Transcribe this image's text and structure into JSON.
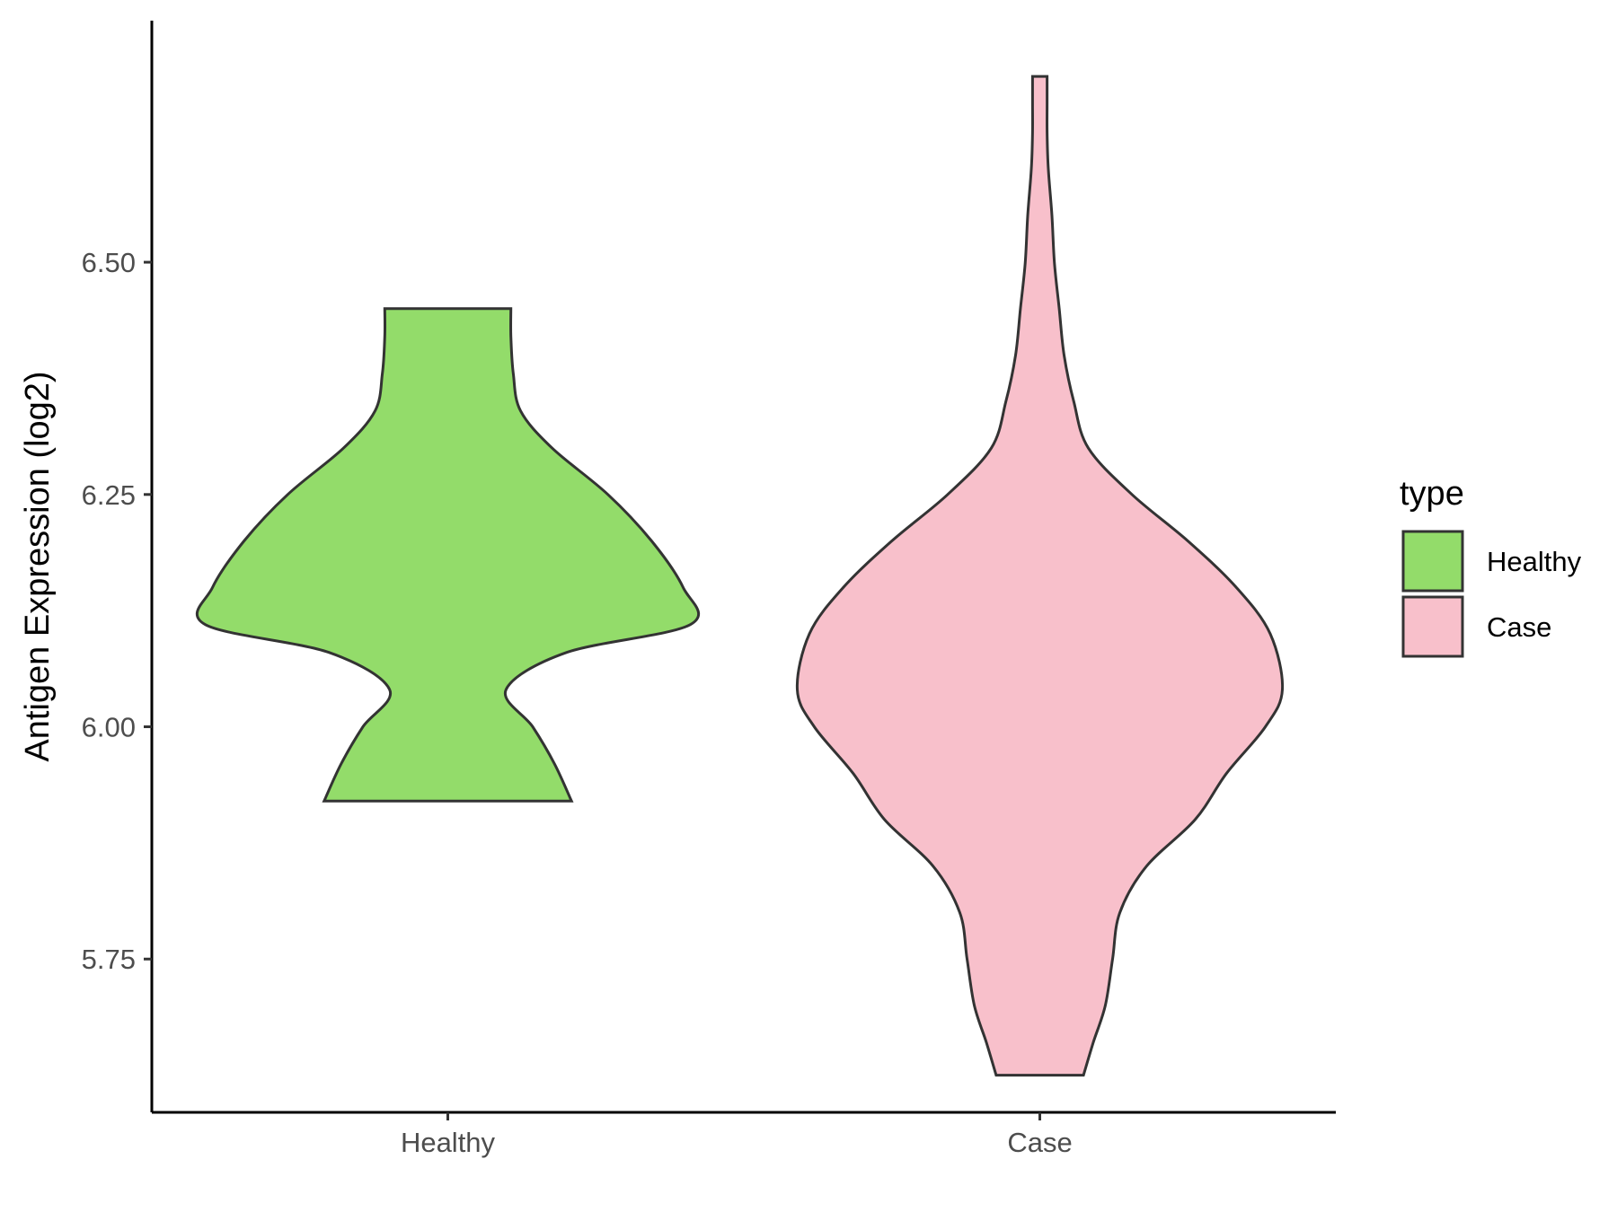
{
  "chart_data": {
    "type": "violin",
    "title": "",
    "xlabel": "",
    "ylabel": "Antigen Expression (log2)",
    "categories": [
      "Healthy",
      "Case"
    ],
    "ylim": [
      5.585,
      6.76
    ],
    "yticks": [
      "5.75",
      "6.00",
      "6.25",
      "6.50"
    ],
    "ytick_values": [
      5.75,
      6.0,
      6.25,
      6.5
    ],
    "grid": false,
    "legend": {
      "title": "type",
      "position": "right",
      "entries": [
        "Healthy",
        "Case"
      ]
    },
    "series": [
      {
        "name": "Healthy",
        "color": "#93dc6a",
        "min": 5.92,
        "max": 6.45,
        "density_profile": [
          [
            5.92,
            0.51
          ],
          [
            5.96,
            0.44
          ],
          [
            6.0,
            0.35
          ],
          [
            6.04,
            0.24
          ],
          [
            6.08,
            0.49
          ],
          [
            6.11,
            1.0
          ],
          [
            6.15,
            0.97
          ],
          [
            6.2,
            0.84
          ],
          [
            6.25,
            0.66
          ],
          [
            6.3,
            0.43
          ],
          [
            6.34,
            0.3
          ],
          [
            6.38,
            0.27
          ],
          [
            6.42,
            0.26
          ],
          [
            6.45,
            0.26
          ]
        ]
      },
      {
        "name": "Case",
        "color": "#f8c0cb",
        "min": 5.625,
        "max": 6.7,
        "density_profile": [
          [
            5.625,
            0.18
          ],
          [
            5.66,
            0.22
          ],
          [
            5.7,
            0.27
          ],
          [
            5.75,
            0.3
          ],
          [
            5.8,
            0.33
          ],
          [
            5.85,
            0.44
          ],
          [
            5.9,
            0.64
          ],
          [
            5.95,
            0.77
          ],
          [
            6.0,
            0.93
          ],
          [
            6.04,
            1.0
          ],
          [
            6.1,
            0.95
          ],
          [
            6.15,
            0.81
          ],
          [
            6.2,
            0.61
          ],
          [
            6.25,
            0.38
          ],
          [
            6.3,
            0.2
          ],
          [
            6.35,
            0.14
          ],
          [
            6.4,
            0.1
          ],
          [
            6.45,
            0.08
          ],
          [
            6.5,
            0.06
          ],
          [
            6.55,
            0.05
          ],
          [
            6.6,
            0.035
          ],
          [
            6.64,
            0.03
          ],
          [
            6.67,
            0.03
          ],
          [
            6.7,
            0.03
          ]
        ]
      }
    ]
  }
}
